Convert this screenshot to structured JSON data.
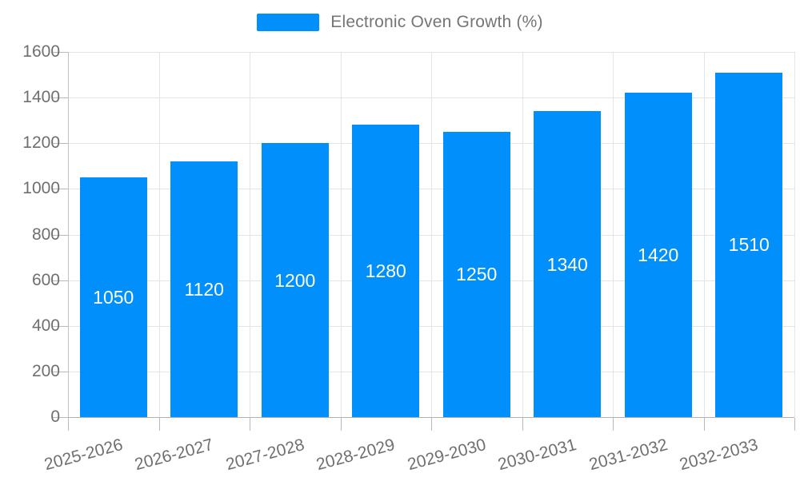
{
  "legend": {
    "label": "Electronic Oven Growth (%)",
    "marker_color": "#008FFB"
  },
  "chart_data": {
    "type": "bar",
    "title": "",
    "xlabel": "",
    "ylabel": "",
    "categories": [
      "2025-2026",
      "2026-2027",
      "2027-2028",
      "2028-2029",
      "2029-2030",
      "2030-2031",
      "2031-2032",
      "2032-2033"
    ],
    "series": [
      {
        "name": "Electronic Oven Growth (%)",
        "values": [
          1050,
          1120,
          1200,
          1280,
          1250,
          1340,
          1420,
          1510
        ]
      }
    ],
    "value_labels_shown": true,
    "ylim": [
      0,
      1600
    ],
    "ytick_step": 200,
    "y_ticks": [
      0,
      200,
      400,
      600,
      800,
      1000,
      1200,
      1400,
      1600
    ],
    "grid": true,
    "legend_position": "top-center",
    "colors": {
      "bar": "#008FFB",
      "value_label": "#ffffff",
      "axis_label": "#6f6f6f",
      "gridline": "#e4e4e4",
      "axis_line": "#b1b1b1"
    }
  }
}
